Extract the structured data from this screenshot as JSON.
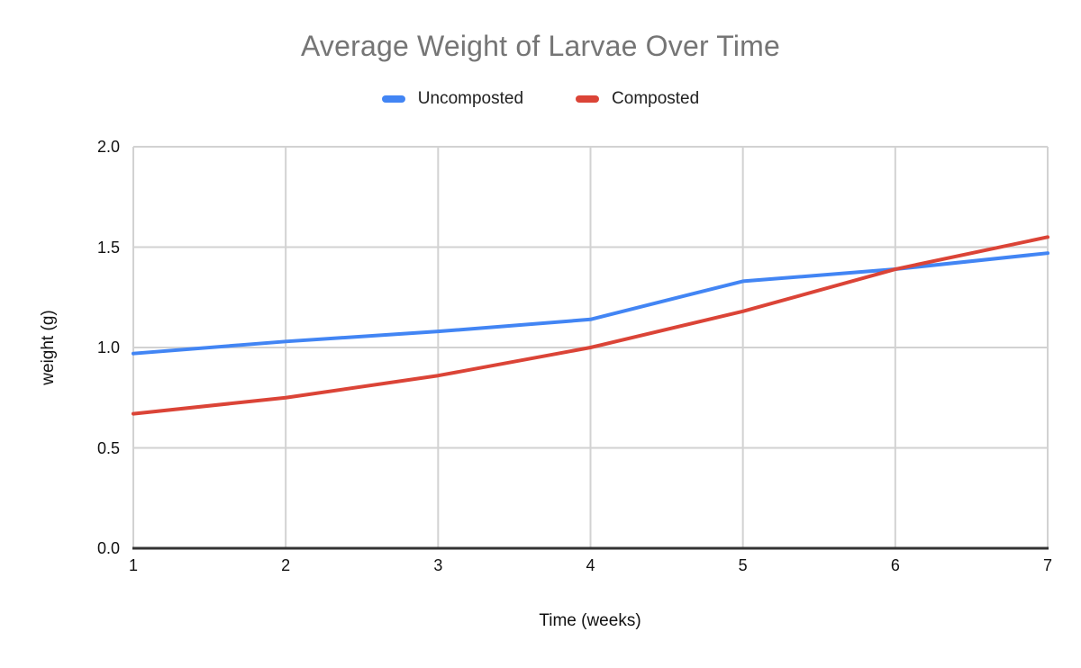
{
  "chart_data": {
    "type": "line",
    "title": "Average Weight of Larvae Over Time",
    "xlabel": "Time (weeks)",
    "ylabel": "weight (g)",
    "x": [
      1,
      2,
      3,
      4,
      5,
      6,
      7
    ],
    "x_tick_labels": [
      "1",
      "2",
      "3",
      "4",
      "5",
      "6",
      "7"
    ],
    "y_tick_labels": [
      "0.0",
      "0.5",
      "1.0",
      "1.5",
      "2.0"
    ],
    "y_tick_values": [
      0,
      0.5,
      1.0,
      1.5,
      2.0
    ],
    "xlim": [
      1,
      7
    ],
    "ylim": [
      0,
      2.0
    ],
    "grid": true,
    "legend_position": "top",
    "series": [
      {
        "name": "Uncomposted",
        "color": "#4285f4",
        "values": [
          0.97,
          1.03,
          1.08,
          1.14,
          1.33,
          1.39,
          1.47
        ]
      },
      {
        "name": "Composted",
        "color": "#db4437",
        "values": [
          0.67,
          0.75,
          0.86,
          1.0,
          1.18,
          1.39,
          1.55
        ]
      }
    ],
    "colors": {
      "title_text": "#757575",
      "axis_text": "#111111",
      "legend_text": "#212121",
      "gridline": "#d2d2d2",
      "axis_line": "#333333",
      "background": "#ffffff"
    }
  }
}
